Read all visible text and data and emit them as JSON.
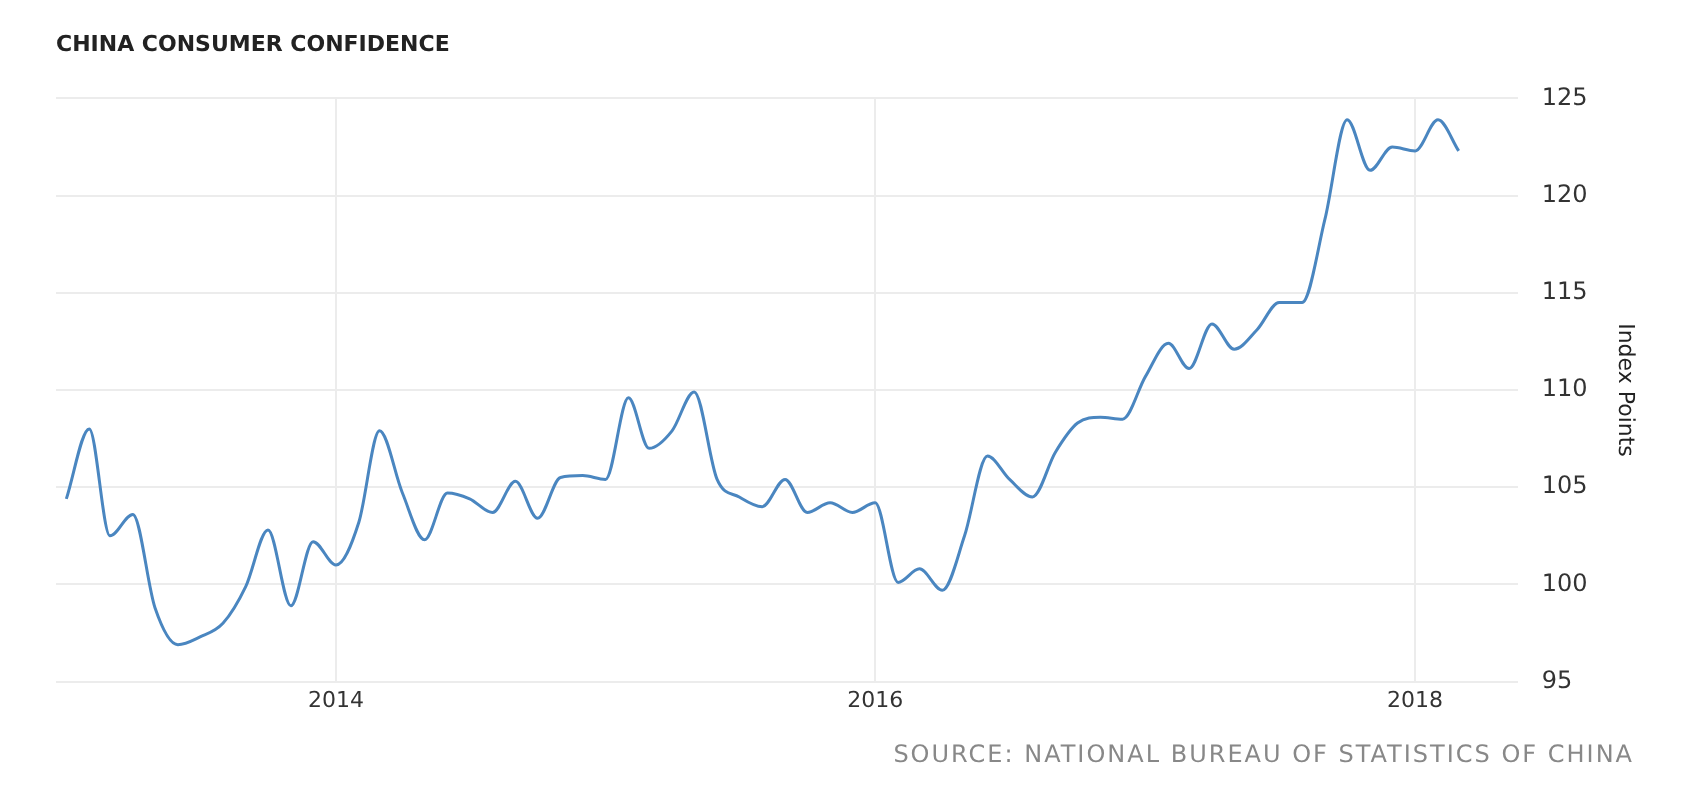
{
  "chart_data": {
    "type": "line",
    "title": "CHINA CONSUMER CONFIDENCE",
    "ylabel": "Index Points",
    "annotations": [
      "SOURCE: NATIONAL BUREAU OF STATISTICS OF CHINA"
    ],
    "x": [
      "2013-01",
      "2013-02",
      "2013-03",
      "2013-04",
      "2013-05",
      "2013-06",
      "2013-07",
      "2013-08",
      "2013-09",
      "2013-10",
      "2013-11",
      "2013-12",
      "2014-01",
      "2014-02",
      "2014-03",
      "2014-04",
      "2014-05",
      "2014-06",
      "2014-07",
      "2014-08",
      "2014-09",
      "2014-10",
      "2014-11",
      "2014-12",
      "2015-01",
      "2015-02",
      "2015-03",
      "2015-04",
      "2015-05",
      "2015-06",
      "2015-07",
      "2015-08",
      "2015-09",
      "2015-10",
      "2015-11",
      "2015-12",
      "2016-01",
      "2016-02",
      "2016-03",
      "2016-04",
      "2016-05",
      "2016-06",
      "2016-07",
      "2016-08",
      "2016-09",
      "2016-10",
      "2016-11",
      "2016-12",
      "2017-01",
      "2017-02",
      "2017-03",
      "2017-04",
      "2017-05",
      "2017-06",
      "2017-07",
      "2017-08",
      "2017-09",
      "2017-10",
      "2017-11",
      "2017-12",
      "2018-01",
      "2018-02",
      "2018-03"
    ],
    "series": [
      {
        "color": "#4a86c0",
        "values": [
          104.4,
          108.0,
          102.5,
          103.6,
          98.8,
          96.9,
          97.3,
          98.0,
          99.9,
          102.8,
          98.9,
          102.2,
          101.0,
          103.2,
          107.9,
          104.7,
          102.3,
          104.7,
          104.4,
          103.7,
          105.3,
          103.4,
          105.5,
          105.6,
          105.4,
          109.6,
          107.0,
          107.9,
          109.9,
          105.4,
          104.5,
          104.0,
          105.4,
          103.7,
          104.2,
          103.7,
          104.2,
          100.1,
          100.8,
          99.7,
          102.5,
          106.6,
          105.4,
          104.5,
          106.8,
          108.3,
          108.6,
          108.5,
          110.7,
          112.4,
          111.1,
          113.4,
          112.1,
          113.1,
          114.5,
          114.5,
          118.8,
          123.9,
          121.3,
          122.5,
          122.3,
          123.9,
          122.3
        ]
      }
    ],
    "xlim": [
      "2012-12-18",
      "2018-05-20"
    ],
    "xticks": [
      "2014",
      "2016",
      "2018"
    ],
    "ylim": [
      95,
      125
    ],
    "yticks": [
      95,
      100,
      105,
      110,
      115,
      120,
      125
    ],
    "grid": true,
    "legend": false,
    "marker": "none",
    "line_style": "solid"
  }
}
